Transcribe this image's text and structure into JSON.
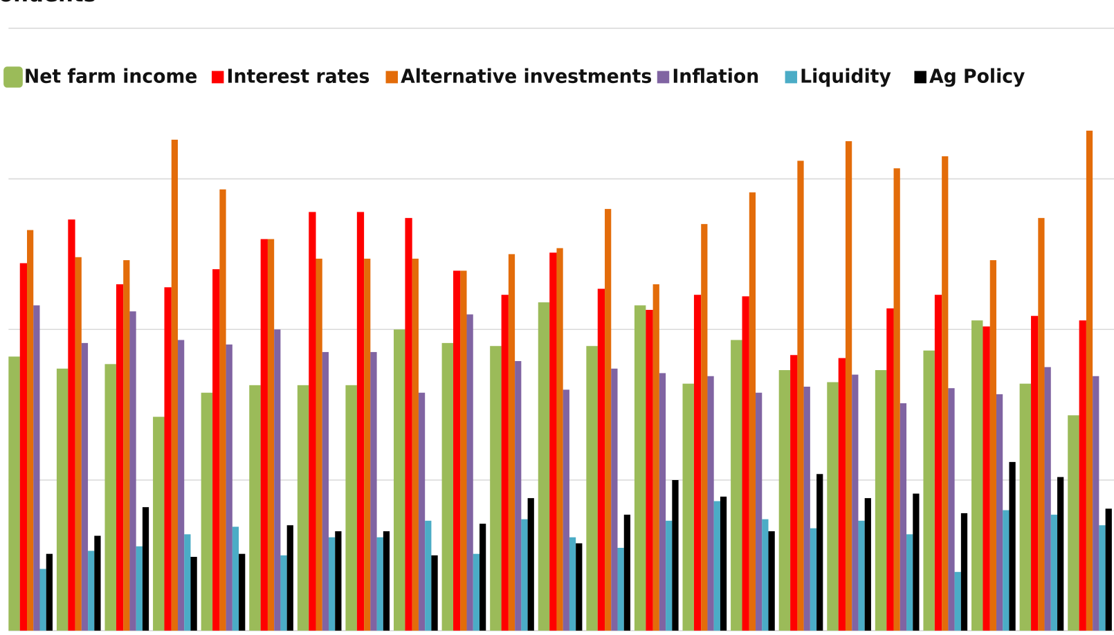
{
  "chart_data": {
    "type": "bar",
    "title": "ondents",
    "categories": [
      null,
      null,
      null,
      null,
      null,
      null,
      null,
      null,
      null,
      null,
      null,
      null,
      null,
      null,
      null,
      null,
      null,
      null,
      null,
      null,
      null,
      null,
      null
    ],
    "series": [
      {
        "name": "Net farm income",
        "color": "#9bbb59",
        "values": [
          18.2,
          17.4,
          17.7,
          14.2,
          15.8,
          16.3,
          16.3,
          16.3,
          20.0,
          19.1,
          18.9,
          21.8,
          18.9,
          21.6,
          16.4,
          19.3,
          17.3,
          16.5,
          17.3,
          18.6,
          20.6,
          16.4,
          14.3
        ]
      },
      {
        "name": "Interest rates",
        "color": "#ff0000",
        "values": [
          24.4,
          27.3,
          23.0,
          22.8,
          24.0,
          26.0,
          27.8,
          27.8,
          27.4,
          23.9,
          22.3,
          25.1,
          22.7,
          21.3,
          22.3,
          22.2,
          18.3,
          18.1,
          21.4,
          22.3,
          20.2,
          20.9,
          20.6
        ]
      },
      {
        "name": "Alternative investments",
        "color": "#e36c0a",
        "values": [
          26.6,
          24.8,
          24.6,
          32.6,
          29.3,
          26.0,
          24.7,
          24.7,
          24.7,
          23.9,
          25.0,
          25.4,
          28.0,
          23.0,
          27.0,
          29.1,
          31.2,
          32.5,
          30.7,
          31.5,
          24.6,
          27.4,
          33.2
        ]
      },
      {
        "name": "Inflation",
        "color": "#8064a2",
        "values": [
          21.6,
          19.1,
          21.2,
          19.3,
          19.0,
          20.0,
          18.5,
          18.5,
          15.8,
          21.0,
          17.9,
          16.0,
          17.4,
          17.1,
          16.9,
          15.8,
          16.2,
          17.0,
          15.1,
          16.1,
          15.7,
          17.5,
          16.9
        ]
      },
      {
        "name": "Liquidity",
        "color": "#4bacc6",
        "values": [
          4.1,
          5.3,
          5.6,
          6.4,
          6.9,
          5.0,
          6.2,
          6.2,
          7.3,
          5.1,
          7.4,
          6.2,
          5.5,
          7.3,
          8.6,
          7.4,
          6.8,
          7.3,
          6.4,
          3.9,
          8.0,
          7.7,
          7.0
        ]
      },
      {
        "name": "Ag Policy",
        "color": "#000000",
        "values": [
          5.1,
          6.3,
          8.2,
          4.9,
          5.1,
          7.0,
          6.6,
          6.6,
          5.0,
          7.1,
          8.8,
          5.8,
          7.7,
          10.0,
          8.9,
          6.6,
          10.4,
          8.8,
          9.1,
          7.8,
          11.2,
          10.2,
          8.1
        ]
      }
    ],
    "ylim": [
      0,
      40
    ],
    "yticks": [
      0,
      10,
      20,
      30,
      40
    ],
    "grid": true
  }
}
